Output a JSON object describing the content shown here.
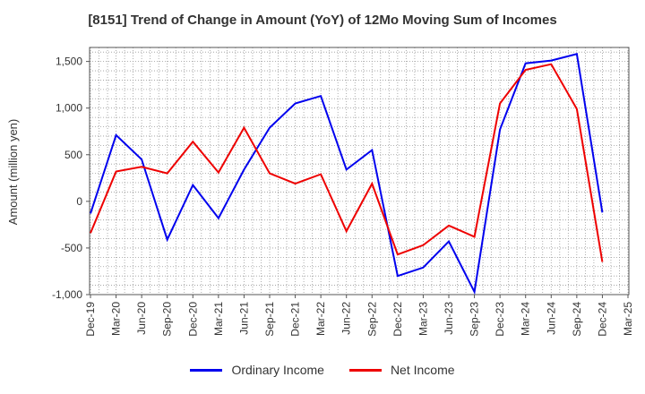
{
  "chart_data": {
    "type": "line",
    "title": "[8151]  Trend of Change in Amount (YoY) of 12Mo Moving Sum of Incomes",
    "ylabel": "Amount (million yen)",
    "xlabel": "",
    "ylim": [
      -1000,
      1650
    ],
    "yticks": [
      1500,
      1000,
      500,
      0,
      -500,
      -1000
    ],
    "ytick_labels": [
      "1,500",
      "1,000",
      "500",
      "0",
      "-500",
      "-1,000"
    ],
    "categories": [
      "Dec-19",
      "Mar-20",
      "Jun-20",
      "Sep-20",
      "Dec-20",
      "Mar-21",
      "Jun-21",
      "Sep-21",
      "Dec-21",
      "Mar-22",
      "Jun-22",
      "Sep-22",
      "Dec-22",
      "Mar-23",
      "Jun-23",
      "Sep-23",
      "Dec-23",
      "Mar-24",
      "Jun-24",
      "Sep-24",
      "Dec-24",
      "Mar-25"
    ],
    "grid": true,
    "legend_position": "bottom",
    "series": [
      {
        "name": "Ordinary Income",
        "color": "#0000ee",
        "values": [
          -130,
          710,
          450,
          -410,
          175,
          -180,
          340,
          790,
          1050,
          1130,
          340,
          550,
          -800,
          -710,
          -430,
          -970,
          770,
          1480,
          1510,
          1580,
          -120,
          null
        ]
      },
      {
        "name": "Net Income",
        "color": "#ee0000",
        "values": [
          -340,
          320,
          370,
          300,
          640,
          310,
          790,
          300,
          190,
          290,
          -320,
          190,
          -570,
          -470,
          -260,
          -380,
          1050,
          1410,
          1470,
          990,
          -650,
          null
        ]
      }
    ]
  }
}
